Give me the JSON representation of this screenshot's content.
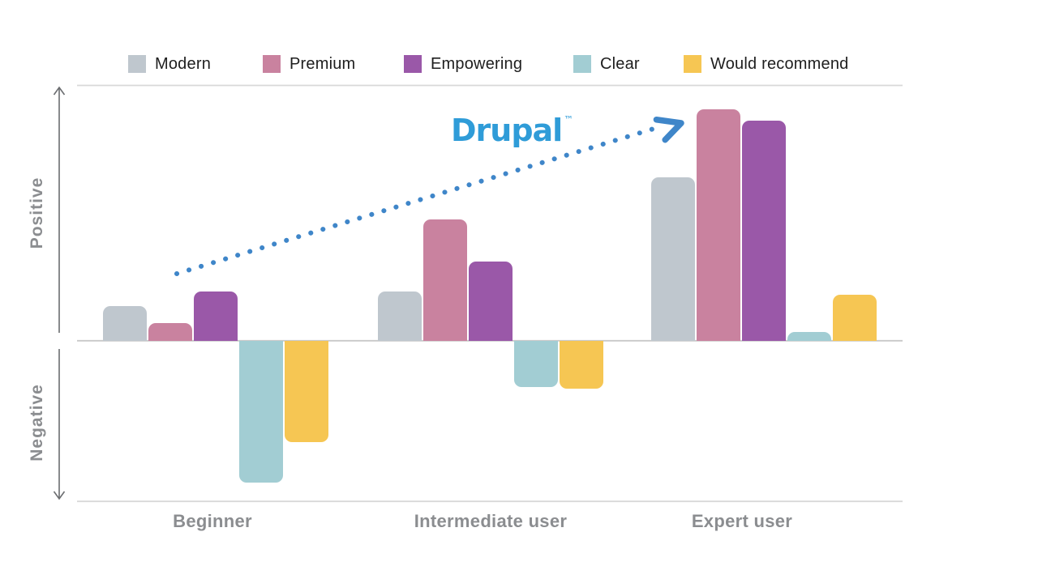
{
  "page": {
    "background": "#ffffff"
  },
  "legend": {
    "position": "top",
    "items": [
      {
        "label": "Modern",
        "color": "#bfc7ce"
      },
      {
        "label": "Premium",
        "color": "#c9829f"
      },
      {
        "label": "Empowering",
        "color": "#9a58a8"
      },
      {
        "label": "Clear",
        "color": "#a2cdd3"
      },
      {
        "label": "Would recommend",
        "color": "#f6c653"
      }
    ]
  },
  "axes": {
    "positive_label": "Positive",
    "negative_label": "Negative"
  },
  "annotation": {
    "logo_text": "Drupal",
    "trademark": "™",
    "logo_color": "#2f9cd8",
    "arrow_color": "#3f86c9",
    "arrow_meaning": "dotted trend arrow rising from Beginner toward Expert user"
  },
  "chart_data": {
    "type": "bar",
    "title": "",
    "categories": [
      "Beginner",
      "Intermediate user",
      "Expert user"
    ],
    "series": [
      {
        "name": "Modern",
        "color": "#bfc7ce",
        "values": [
          43,
          61,
          202
        ]
      },
      {
        "name": "Premium",
        "color": "#c9829f",
        "values": [
          22,
          150,
          286
        ]
      },
      {
        "name": "Empowering",
        "color": "#9a58a8",
        "values": [
          61,
          98,
          272
        ]
      },
      {
        "name": "Clear",
        "color": "#a2cdd3",
        "values": [
          -175,
          -57,
          11
        ]
      },
      {
        "name": "Would recommend",
        "color": "#f6c653",
        "values": [
          -125,
          -59,
          57
        ]
      }
    ],
    "ylabel": "Positive (up) / Negative (down)",
    "value_scale": "no numeric axis shown; values are signed bar lengths in screen pixels",
    "ylim": [
      -198,
      316
    ],
    "baseline": 0,
    "grid": false,
    "legend_position": "top"
  }
}
